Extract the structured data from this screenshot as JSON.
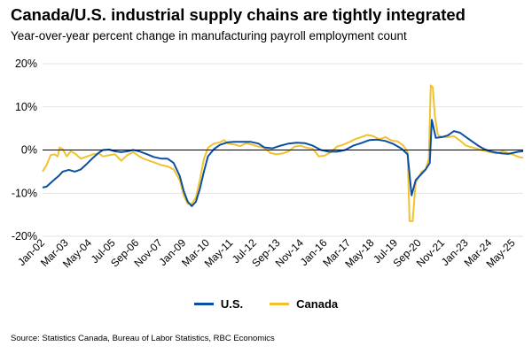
{
  "chart_data": {
    "type": "line",
    "title": "Canada/U.S. industrial supply chains are tightly integrated",
    "subtitle": "Year-over-year percent change in manufacturing payroll employment count",
    "source": "Source: Statistics Canada, Bureau of Labor Statistics, RBC Economics",
    "ylim": [
      -20,
      20
    ],
    "yticks": [
      20,
      10,
      0,
      -10,
      -20
    ],
    "ytick_labels": [
      "20%",
      "10%",
      "0%",
      "-10%",
      "-20%"
    ],
    "xlim": [
      2002.0,
      2025.83
    ],
    "xticks": [
      {
        "label": "Jan-02",
        "x": 2002.0
      },
      {
        "label": "Mar-03",
        "x": 2003.17
      },
      {
        "label": "May-04",
        "x": 2004.33
      },
      {
        "label": "Jul-05",
        "x": 2005.5
      },
      {
        "label": "Sep-06",
        "x": 2006.67
      },
      {
        "label": "Nov-07",
        "x": 2007.83
      },
      {
        "label": "Jan-09",
        "x": 2009.0
      },
      {
        "label": "Mar-10",
        "x": 2010.17
      },
      {
        "label": "May-11",
        "x": 2011.33
      },
      {
        "label": "Jul-12",
        "x": 2012.5
      },
      {
        "label": "Sep-13",
        "x": 2013.67
      },
      {
        "label": "Nov-14",
        "x": 2014.83
      },
      {
        "label": "Jan-16",
        "x": 2016.0
      },
      {
        "label": "Mar-17",
        "x": 2017.17
      },
      {
        "label": "May-18",
        "x": 2018.33
      },
      {
        "label": "Jul-19",
        "x": 2019.5
      },
      {
        "label": "Sep-20",
        "x": 2020.67
      },
      {
        "label": "Nov-21",
        "x": 2021.83
      },
      {
        "label": "Jan-23",
        "x": 2023.0
      },
      {
        "label": "Mar-24",
        "x": 2024.17
      },
      {
        "label": "May-25",
        "x": 2025.33
      }
    ],
    "series": [
      {
        "name": "U.S.",
        "color": "#0a4fa3",
        "points": [
          [
            2002.0,
            -8.7
          ],
          [
            2002.2,
            -8.5
          ],
          [
            2002.5,
            -7.2
          ],
          [
            2002.8,
            -6.0
          ],
          [
            2003.0,
            -5.0
          ],
          [
            2003.3,
            -4.6
          ],
          [
            2003.6,
            -5.0
          ],
          [
            2003.9,
            -4.5
          ],
          [
            2004.2,
            -3.2
          ],
          [
            2004.5,
            -1.8
          ],
          [
            2004.8,
            -0.6
          ],
          [
            2005.0,
            0.0
          ],
          [
            2005.3,
            0.1
          ],
          [
            2005.6,
            -0.3
          ],
          [
            2005.9,
            -0.5
          ],
          [
            2006.2,
            -0.3
          ],
          [
            2006.5,
            0.0
          ],
          [
            2006.8,
            -0.3
          ],
          [
            2007.2,
            -1.0
          ],
          [
            2007.5,
            -1.6
          ],
          [
            2007.9,
            -2.0
          ],
          [
            2008.2,
            -2.0
          ],
          [
            2008.5,
            -3.0
          ],
          [
            2008.8,
            -6.0
          ],
          [
            2009.0,
            -9.5
          ],
          [
            2009.2,
            -12.0
          ],
          [
            2009.4,
            -13.0
          ],
          [
            2009.6,
            -12.0
          ],
          [
            2009.8,
            -9.0
          ],
          [
            2010.0,
            -5.0
          ],
          [
            2010.2,
            -1.5
          ],
          [
            2010.5,
            0.2
          ],
          [
            2010.8,
            1.2
          ],
          [
            2011.2,
            1.8
          ],
          [
            2011.5,
            1.9
          ],
          [
            2011.9,
            1.9
          ],
          [
            2012.3,
            1.9
          ],
          [
            2012.7,
            1.5
          ],
          [
            2013.0,
            0.6
          ],
          [
            2013.4,
            0.4
          ],
          [
            2013.8,
            1.0
          ],
          [
            2014.2,
            1.5
          ],
          [
            2014.6,
            1.7
          ],
          [
            2015.0,
            1.6
          ],
          [
            2015.4,
            1.0
          ],
          [
            2015.8,
            0.0
          ],
          [
            2016.2,
            -0.4
          ],
          [
            2016.6,
            -0.4
          ],
          [
            2017.0,
            0.0
          ],
          [
            2017.4,
            1.0
          ],
          [
            2017.8,
            1.6
          ],
          [
            2018.2,
            2.3
          ],
          [
            2018.6,
            2.4
          ],
          [
            2019.0,
            2.1
          ],
          [
            2019.4,
            1.4
          ],
          [
            2019.8,
            0.3
          ],
          [
            2020.1,
            -1.0
          ],
          [
            2020.3,
            -10.5
          ],
          [
            2020.5,
            -7.0
          ],
          [
            2020.8,
            -5.5
          ],
          [
            2021.0,
            -4.5
          ],
          [
            2021.2,
            -3.0
          ],
          [
            2021.3,
            7.0
          ],
          [
            2021.5,
            2.8
          ],
          [
            2021.8,
            3.0
          ],
          [
            2022.1,
            3.4
          ],
          [
            2022.4,
            4.4
          ],
          [
            2022.7,
            4.0
          ],
          [
            2023.0,
            3.0
          ],
          [
            2023.3,
            2.0
          ],
          [
            2023.6,
            1.0
          ],
          [
            2023.9,
            0.2
          ],
          [
            2024.2,
            -0.3
          ],
          [
            2024.5,
            -0.6
          ],
          [
            2024.8,
            -0.8
          ],
          [
            2025.1,
            -0.9
          ],
          [
            2025.4,
            -0.6
          ],
          [
            2025.6,
            -0.4
          ],
          [
            2025.83,
            -0.3
          ]
        ]
      },
      {
        "name": "Canada",
        "color": "#f2c12e",
        "points": [
          [
            2002.0,
            -5.0
          ],
          [
            2002.2,
            -3.5
          ],
          [
            2002.4,
            -1.2
          ],
          [
            2002.6,
            -1.0
          ],
          [
            2002.75,
            -1.5
          ],
          [
            2002.85,
            0.6
          ],
          [
            2003.0,
            0.2
          ],
          [
            2003.2,
            -1.5
          ],
          [
            2003.4,
            -0.3
          ],
          [
            2003.6,
            -0.8
          ],
          [
            2003.9,
            -2.0
          ],
          [
            2004.2,
            -1.5
          ],
          [
            2004.5,
            -1.0
          ],
          [
            2004.8,
            -0.8
          ],
          [
            2005.0,
            -1.5
          ],
          [
            2005.3,
            -1.2
          ],
          [
            2005.6,
            -1.0
          ],
          [
            2005.9,
            -2.5
          ],
          [
            2006.2,
            -1.2
          ],
          [
            2006.5,
            -0.5
          ],
          [
            2006.8,
            -1.5
          ],
          [
            2007.0,
            -2.0
          ],
          [
            2007.3,
            -2.5
          ],
          [
            2007.6,
            -3.0
          ],
          [
            2007.9,
            -3.5
          ],
          [
            2008.2,
            -3.8
          ],
          [
            2008.5,
            -4.5
          ],
          [
            2008.8,
            -7.0
          ],
          [
            2009.0,
            -10.5
          ],
          [
            2009.2,
            -12.5
          ],
          [
            2009.4,
            -12.5
          ],
          [
            2009.6,
            -11.0
          ],
          [
            2009.8,
            -7.0
          ],
          [
            2010.0,
            -2.0
          ],
          [
            2010.2,
            0.5
          ],
          [
            2010.5,
            1.5
          ],
          [
            2010.8,
            1.8
          ],
          [
            2011.0,
            2.3
          ],
          [
            2011.2,
            1.5
          ],
          [
            2011.5,
            1.3
          ],
          [
            2011.8,
            0.9
          ],
          [
            2012.1,
            1.6
          ],
          [
            2012.4,
            1.2
          ],
          [
            2012.7,
            0.8
          ],
          [
            2013.0,
            0.5
          ],
          [
            2013.3,
            -0.7
          ],
          [
            2013.6,
            -1.0
          ],
          [
            2013.9,
            -0.8
          ],
          [
            2014.2,
            -0.3
          ],
          [
            2014.5,
            0.8
          ],
          [
            2014.8,
            1.0
          ],
          [
            2015.1,
            0.5
          ],
          [
            2015.4,
            0.3
          ],
          [
            2015.7,
            -1.5
          ],
          [
            2016.0,
            -1.3
          ],
          [
            2016.3,
            -0.5
          ],
          [
            2016.6,
            0.8
          ],
          [
            2016.9,
            1.2
          ],
          [
            2017.2,
            1.8
          ],
          [
            2017.5,
            2.5
          ],
          [
            2017.8,
            3.0
          ],
          [
            2018.1,
            3.5
          ],
          [
            2018.4,
            3.2
          ],
          [
            2018.7,
            2.5
          ],
          [
            2019.0,
            3.0
          ],
          [
            2019.3,
            2.2
          ],
          [
            2019.6,
            2.0
          ],
          [
            2019.9,
            1.0
          ],
          [
            2020.1,
            -0.5
          ],
          [
            2020.2,
            -16.5
          ],
          [
            2020.35,
            -16.5
          ],
          [
            2020.5,
            -7.5
          ],
          [
            2020.8,
            -5.0
          ],
          [
            2021.0,
            -4.5
          ],
          [
            2021.15,
            -2.0
          ],
          [
            2021.25,
            15.0
          ],
          [
            2021.35,
            14.5
          ],
          [
            2021.45,
            8.0
          ],
          [
            2021.6,
            3.5
          ],
          [
            2021.8,
            3.0
          ],
          [
            2022.1,
            3.0
          ],
          [
            2022.4,
            3.2
          ],
          [
            2022.7,
            2.2
          ],
          [
            2023.0,
            1.0
          ],
          [
            2023.3,
            0.6
          ],
          [
            2023.6,
            0.2
          ],
          [
            2023.9,
            -0.2
          ],
          [
            2024.2,
            -0.5
          ],
          [
            2024.5,
            -0.8
          ],
          [
            2024.8,
            -0.3
          ],
          [
            2025.1,
            -0.7
          ],
          [
            2025.4,
            -1.2
          ],
          [
            2025.6,
            -1.6
          ],
          [
            2025.83,
            -1.8
          ]
        ]
      }
    ]
  }
}
